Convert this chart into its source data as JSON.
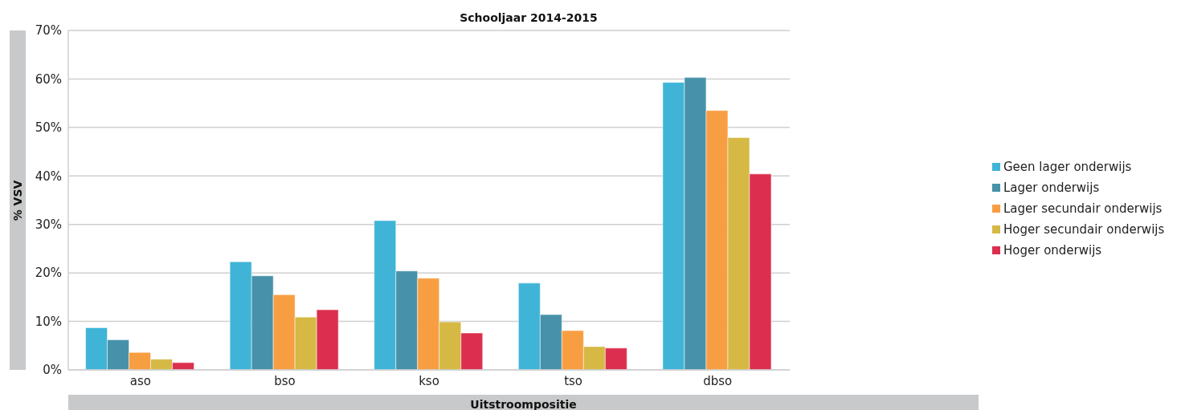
{
  "chart_data": {
    "type": "bar",
    "title": "Schooljaar 2014-2015",
    "xlabel": "Uitstroompositie",
    "ylabel": "% VSV",
    "categories": [
      "aso",
      "bso",
      "kso",
      "tso",
      "dbso"
    ],
    "series": [
      {
        "name": "Geen lager onderwijs",
        "color": "#3fb4d7",
        "values": [
          8.7,
          22.3,
          30.8,
          17.9,
          59.3
        ]
      },
      {
        "name": "Lager onderwijs",
        "color": "#4792aa",
        "values": [
          6.2,
          19.4,
          20.4,
          11.4,
          60.3
        ]
      },
      {
        "name": "Lager secundair onderwijs",
        "color": "#f89e42",
        "values": [
          3.6,
          15.5,
          18.9,
          8.1,
          53.5
        ]
      },
      {
        "name": "Hoger secundair onderwijs",
        "color": "#d5b944",
        "values": [
          2.2,
          10.9,
          9.9,
          4.8,
          47.9
        ]
      },
      {
        "name": "Hoger onderwijs",
        "color": "#dc2f4f",
        "values": [
          1.5,
          12.4,
          7.6,
          4.5,
          40.4
        ]
      }
    ],
    "ylim": [
      0,
      70
    ],
    "yticks": [
      {
        "value": 0,
        "label": "0%"
      },
      {
        "value": 10,
        "label": "10%"
      },
      {
        "value": 20,
        "label": "20%"
      },
      {
        "value": 30,
        "label": "30%"
      },
      {
        "value": 40,
        "label": "40%"
      },
      {
        "value": 50,
        "label": "50%"
      },
      {
        "value": 60,
        "label": "60%"
      },
      {
        "value": 70,
        "label": "70%"
      }
    ],
    "grid": "y",
    "legend": "right"
  }
}
